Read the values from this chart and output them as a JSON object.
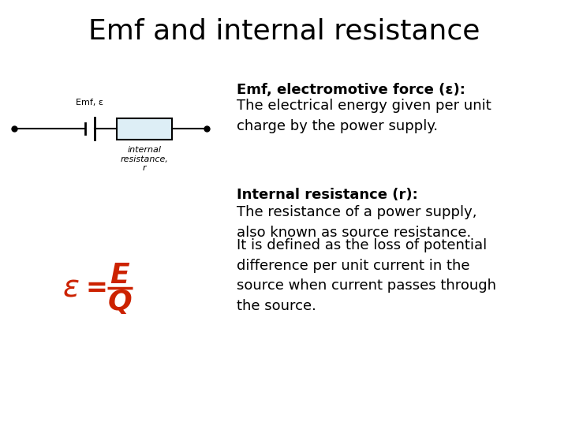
{
  "title": "Emf and internal resistance",
  "title_fontsize": 26,
  "bg_color": "#ffffff",
  "emf_bold_label": "Emf, electromotive force (ε):",
  "emf_text": "The electrical energy given per unit\ncharge by the power supply.",
  "ir_bold_label": "Internal resistance (r):",
  "ir_text1": "The resistance of a power supply,\nalso known as source resistance.",
  "ir_text2": "It is defined as the loss of potential\ndifference per unit current in the\nsource when current passes through\nthe source.",
  "formula_color": "#cc2200",
  "circuit_label_emf": "Emf, ε",
  "circuit_label_r": "internal\nresistance,\nr",
  "text_fontsize": 13,
  "text_bold_fontsize": 13
}
